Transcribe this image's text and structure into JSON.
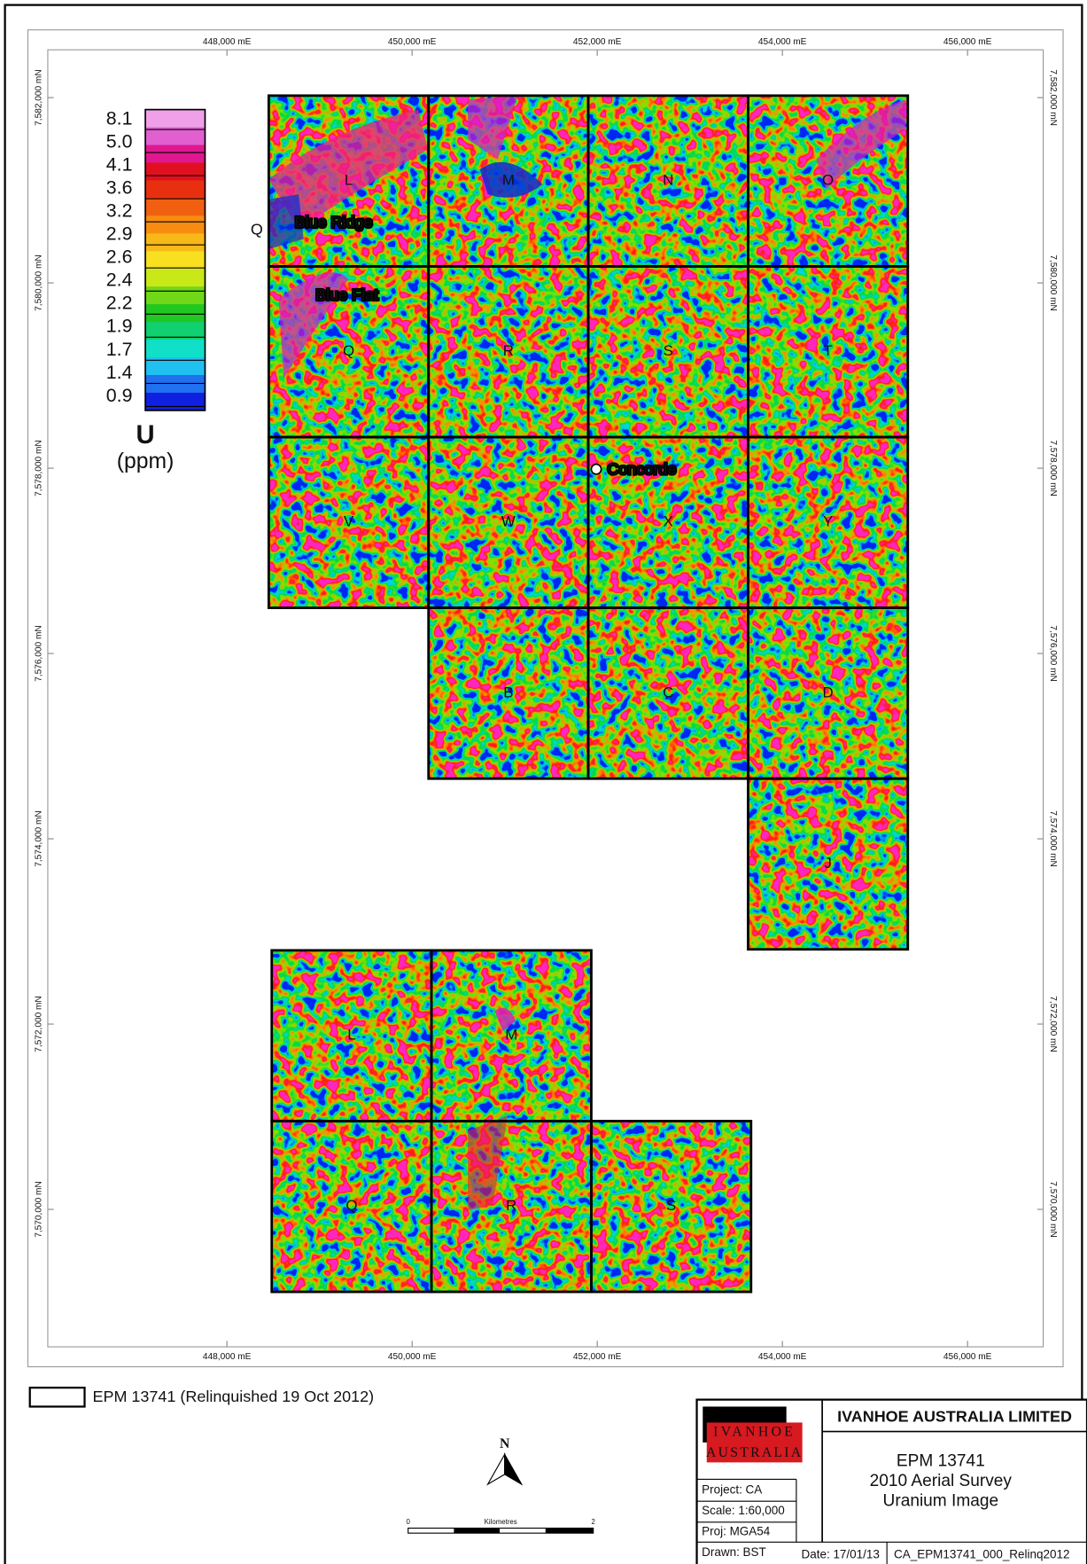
{
  "map_grid": {
    "eastings_top": [
      "448,000 mE",
      "450,000 mE",
      "452,000 mE",
      "454,000 mE",
      "456,000 mE"
    ],
    "eastings_bottom": [
      "448,000 mE",
      "450,000 mE",
      "452,000 mE",
      "454,000 mE",
      "456,000 mE"
    ],
    "northings_left": [
      "7,582,000 mN",
      "7,580,000 mN",
      "7,578,000 mN",
      "7,576,000 mN",
      "7,574,000 mN",
      "7,572,000 mN",
      "7,570,000 mN"
    ],
    "northings_right": [
      "7,582,000 mN",
      "7,580,000 mN",
      "7,578,000 mN",
      "7,576,000 mN",
      "7,574,000 mN",
      "7,572,000 mN",
      "7,570,000 mN"
    ]
  },
  "legend": {
    "values": [
      "8.1",
      "5.0",
      "4.1",
      "3.6",
      "3.2",
      "2.9",
      "2.6",
      "2.4",
      "2.2",
      "1.9",
      "1.7",
      "1.4",
      "0.9"
    ],
    "symbol": "U",
    "unit": "(ppm)"
  },
  "blocks": {
    "north": [
      "L",
      "M",
      "N",
      "O",
      "Q",
      "R",
      "S",
      "T",
      "V",
      "W",
      "X",
      "Y",
      "B",
      "C",
      "D",
      "J"
    ],
    "south": [
      "L",
      "M",
      "Q",
      "R",
      "S"
    ]
  },
  "places": [
    "Blue Ridge",
    "Blue Flat",
    "Concorde"
  ],
  "marker": "Q",
  "key": {
    "label": "EPM 13741 (Relinquished 19 Oct 2012)"
  },
  "north_arrow": "N",
  "scale_bar": {
    "start": "0",
    "unit": "Kilometres",
    "end": "2"
  },
  "title_block": {
    "company": "IVANHOE AUSTRALIA LIMITED",
    "logo": [
      "IVANHOE",
      "AUSTRALIA"
    ],
    "title": [
      "EPM 13741",
      "2010 Aerial Survey",
      "Uranium Image"
    ],
    "project": "Project: CA",
    "scale": "Scale: 1:60,000",
    "projection": "Proj: MGA54",
    "drawn": "Drawn: BST",
    "date": "Date: 17/01/13",
    "file": "CA_EPM13741_000_Relinq2012"
  }
}
